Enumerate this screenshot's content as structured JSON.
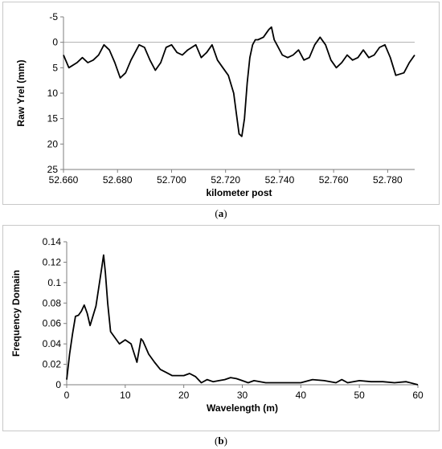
{
  "captions": {
    "a_open": "(",
    "a_letter": "a",
    "a_close": ")",
    "b_open": "(",
    "b_letter": "b",
    "b_close": ")"
  },
  "chart_data": [
    {
      "type": "line",
      "xlabel": "kilometer post",
      "ylabel": "Raw Yrel (mm)",
      "xlim": [
        52.66,
        52.79
      ],
      "ylim": [
        -5,
        25
      ],
      "y_reversed": true,
      "x_ticks": [
        "52.660",
        "52.680",
        "52.700",
        "52.720",
        "52.740",
        "52.760",
        "52.780"
      ],
      "x_tick_values": [
        52.66,
        52.68,
        52.7,
        52.72,
        52.74,
        52.76,
        52.78
      ],
      "y_ticks": [
        "-5",
        "0",
        "5",
        "10",
        "15",
        "20",
        "25"
      ],
      "y_tick_values": [
        -5,
        0,
        5,
        10,
        15,
        20,
        25
      ],
      "reference_line": 0,
      "grid": false,
      "series": [
        {
          "x": [
            52.66,
            52.662,
            52.665,
            52.667,
            52.669,
            52.671,
            52.673,
            52.675,
            52.677,
            52.679,
            52.681,
            52.683,
            52.685,
            52.688,
            52.69,
            52.692,
            52.694,
            52.696,
            52.698,
            52.7,
            52.702,
            52.704,
            52.706,
            52.709,
            52.711,
            52.713,
            52.715,
            52.717,
            52.719,
            52.721,
            52.723,
            52.724,
            52.725,
            52.726,
            52.727,
            52.728,
            52.729,
            52.73,
            52.731,
            52.732,
            52.734,
            52.736,
            52.737,
            52.738,
            52.739,
            52.741,
            52.743,
            52.745,
            52.747,
            52.749,
            52.751,
            52.753,
            52.755,
            52.757,
            52.759,
            52.761,
            52.763,
            52.765,
            52.767,
            52.769,
            52.771,
            52.773,
            52.775,
            52.777,
            52.779,
            52.781,
            52.783,
            52.786,
            52.788,
            52.79
          ],
          "y": [
            2.5,
            5.0,
            4.0,
            3.0,
            4.0,
            3.5,
            2.5,
            0.5,
            1.5,
            4.0,
            7.0,
            6.0,
            3.5,
            0.5,
            1.0,
            3.5,
            5.5,
            4.0,
            1.0,
            0.5,
            2.0,
            2.5,
            1.5,
            0.5,
            3.0,
            2.0,
            0.5,
            3.5,
            5.0,
            6.5,
            10.0,
            14.0,
            18.0,
            18.5,
            15.0,
            8.0,
            3.0,
            0.5,
            -0.5,
            -0.5,
            -1.0,
            -2.5,
            -3.0,
            -0.5,
            0.5,
            2.5,
            3.0,
            2.5,
            1.5,
            3.5,
            3.0,
            0.5,
            -1.0,
            0.5,
            3.5,
            5.0,
            4.0,
            2.5,
            3.5,
            3.0,
            1.5,
            3.0,
            2.5,
            1.0,
            0.5,
            3.0,
            6.5,
            6.0,
            4.0,
            2.5
          ]
        }
      ]
    },
    {
      "type": "line",
      "xlabel": "Wavelength (m)",
      "ylabel": "Frequency Domain",
      "xlim": [
        0,
        60
      ],
      "ylim": [
        0,
        0.14
      ],
      "x_ticks": [
        "0",
        "10",
        "20",
        "30",
        "40",
        "50",
        "60"
      ],
      "x_tick_values": [
        0,
        10,
        20,
        30,
        40,
        50,
        60
      ],
      "y_ticks": [
        "0",
        "0.02",
        "0.04",
        "0.06",
        "0.08",
        "0.1",
        "0.12",
        "0.14"
      ],
      "y_tick_values": [
        0,
        0.02,
        0.04,
        0.06,
        0.08,
        0.1,
        0.12,
        0.14
      ],
      "grid": false,
      "series": [
        {
          "x": [
            0,
            0.5,
            1,
            1.5,
            2,
            2.5,
            3,
            3.5,
            4,
            5,
            6,
            6.3,
            6.6,
            7,
            7.5,
            8,
            9,
            10,
            11,
            12,
            12.4,
            12.7,
            13,
            13.4,
            14,
            15,
            16,
            17,
            18,
            20,
            21,
            22,
            23,
            24,
            25,
            26,
            27,
            28,
            29,
            30,
            31,
            32,
            34,
            36,
            38,
            40,
            42,
            44,
            46,
            47,
            48,
            50,
            52,
            54,
            56,
            58,
            60
          ],
          "y": [
            0.005,
            0.03,
            0.05,
            0.067,
            0.068,
            0.072,
            0.078,
            0.07,
            0.058,
            0.077,
            0.115,
            0.127,
            0.11,
            0.08,
            0.052,
            0.048,
            0.04,
            0.044,
            0.04,
            0.022,
            0.035,
            0.045,
            0.043,
            0.038,
            0.03,
            0.022,
            0.015,
            0.012,
            0.009,
            0.009,
            0.011,
            0.008,
            0.002,
            0.005,
            0.003,
            0.004,
            0.005,
            0.007,
            0.006,
            0.004,
            0.002,
            0.004,
            0.002,
            0.002,
            0.002,
            0.002,
            0.005,
            0.004,
            0.002,
            0.005,
            0.002,
            0.004,
            0.003,
            0.003,
            0.002,
            0.003,
            0.0
          ]
        }
      ]
    }
  ]
}
